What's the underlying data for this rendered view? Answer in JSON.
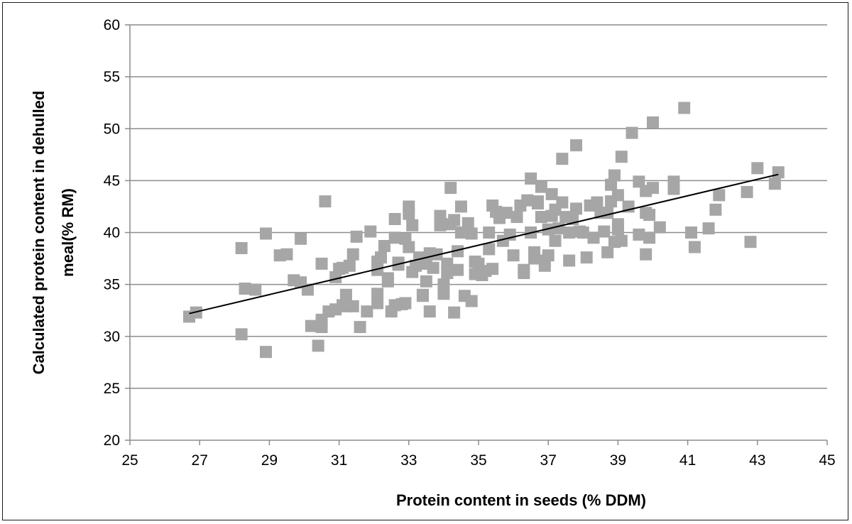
{
  "chart_data": {
    "type": "scatter",
    "title": "",
    "xlabel": "Protein content in seeds (% DDM)",
    "ylabel": "Calculated protein content in dehulled meal(% RM)",
    "xlim": [
      25,
      45
    ],
    "ylim": [
      20,
      60
    ],
    "xticks": [
      25,
      27,
      29,
      31,
      33,
      35,
      37,
      39,
      41,
      43,
      45
    ],
    "yticks": [
      20,
      25,
      30,
      35,
      40,
      45,
      50,
      55,
      60
    ],
    "grid": "horizontal",
    "legend": "none",
    "marker_color": "#a6a6a6",
    "trend_color": "#000000",
    "trendline": {
      "x": [
        26.7,
        43.6
      ],
      "y": [
        32.2,
        45.6
      ]
    },
    "points": [
      [
        26.7,
        31.9
      ],
      [
        26.9,
        32.3
      ],
      [
        28.2,
        38.5
      ],
      [
        28.3,
        34.6
      ],
      [
        28.6,
        34.5
      ],
      [
        28.2,
        30.2
      ],
      [
        28.9,
        28.5
      ],
      [
        28.9,
        39.9
      ],
      [
        29.3,
        37.8
      ],
      [
        29.5,
        37.9
      ],
      [
        29.7,
        35.4
      ],
      [
        29.9,
        39.4
      ],
      [
        29.9,
        35.2
      ],
      [
        30.1,
        34.5
      ],
      [
        30.2,
        31.0
      ],
      [
        30.4,
        29.1
      ],
      [
        30.5,
        30.9
      ],
      [
        30.5,
        31.6
      ],
      [
        30.5,
        37.0
      ],
      [
        30.6,
        43.0
      ],
      [
        30.7,
        32.4
      ],
      [
        30.9,
        32.6
      ],
      [
        30.9,
        35.7
      ],
      [
        31.0,
        36.5
      ],
      [
        31.1,
        36.6
      ],
      [
        31.1,
        33.0
      ],
      [
        31.2,
        34.0
      ],
      [
        31.2,
        32.9
      ],
      [
        31.3,
        36.8
      ],
      [
        31.4,
        37.9
      ],
      [
        31.4,
        32.9
      ],
      [
        31.5,
        39.6
      ],
      [
        31.6,
        30.9
      ],
      [
        31.8,
        32.4
      ],
      [
        31.9,
        40.1
      ],
      [
        32.1,
        37.2
      ],
      [
        32.1,
        36.4
      ],
      [
        32.1,
        34.1
      ],
      [
        32.1,
        33.2
      ],
      [
        32.2,
        37.6
      ],
      [
        32.3,
        38.7
      ],
      [
        32.4,
        35.3
      ],
      [
        32.4,
        35.6
      ],
      [
        32.5,
        32.4
      ],
      [
        32.6,
        33.0
      ],
      [
        32.6,
        39.5
      ],
      [
        32.6,
        41.3
      ],
      [
        32.7,
        37.1
      ],
      [
        32.7,
        36.9
      ],
      [
        32.8,
        33.1
      ],
      [
        32.9,
        33.2
      ],
      [
        32.9,
        39.4
      ],
      [
        33.0,
        38.6
      ],
      [
        33.0,
        42.5
      ],
      [
        33.0,
        41.8
      ],
      [
        33.1,
        40.7
      ],
      [
        33.1,
        36.2
      ],
      [
        33.2,
        36.8
      ],
      [
        33.3,
        37.6
      ],
      [
        33.4,
        34.0
      ],
      [
        33.4,
        33.9
      ],
      [
        33.5,
        37.0
      ],
      [
        33.5,
        35.3
      ],
      [
        33.6,
        38.0
      ],
      [
        33.6,
        32.4
      ],
      [
        33.7,
        36.6
      ],
      [
        33.8,
        37.9
      ],
      [
        33.9,
        41.6
      ],
      [
        33.9,
        40.7
      ],
      [
        34.0,
        35.0
      ],
      [
        34.0,
        34.1
      ],
      [
        34.1,
        37.0
      ],
      [
        34.1,
        36.1
      ],
      [
        34.2,
        44.3
      ],
      [
        34.2,
        40.8
      ],
      [
        34.3,
        41.2
      ],
      [
        34.3,
        32.3
      ],
      [
        34.4,
        36.4
      ],
      [
        34.4,
        38.2
      ],
      [
        34.5,
        40.0
      ],
      [
        34.5,
        42.5
      ],
      [
        34.6,
        33.9
      ],
      [
        34.7,
        40.9
      ],
      [
        34.8,
        39.9
      ],
      [
        34.8,
        33.4
      ],
      [
        34.9,
        37.2
      ],
      [
        34.9,
        36.0
      ],
      [
        35.0,
        37.0
      ],
      [
        35.1,
        35.9
      ],
      [
        35.2,
        36.3
      ],
      [
        35.3,
        38.4
      ],
      [
        35.3,
        40.0
      ],
      [
        35.4,
        36.5
      ],
      [
        35.4,
        42.6
      ],
      [
        35.5,
        42.0
      ],
      [
        35.6,
        41.4
      ],
      [
        35.7,
        39.2
      ],
      [
        35.8,
        41.9
      ],
      [
        35.9,
        39.8
      ],
      [
        36.0,
        37.8
      ],
      [
        36.1,
        41.5
      ],
      [
        36.2,
        42.6
      ],
      [
        36.3,
        36.4
      ],
      [
        36.3,
        36.1
      ],
      [
        36.4,
        43.1
      ],
      [
        36.5,
        45.2
      ],
      [
        36.5,
        40.0
      ],
      [
        36.6,
        38.1
      ],
      [
        36.6,
        37.5
      ],
      [
        36.7,
        42.8
      ],
      [
        36.7,
        43.0
      ],
      [
        36.8,
        41.5
      ],
      [
        36.8,
        44.4
      ],
      [
        36.9,
        36.8
      ],
      [
        36.9,
        37.3
      ],
      [
        37.0,
        37.8
      ],
      [
        37.0,
        40.3
      ],
      [
        37.1,
        43.7
      ],
      [
        37.1,
        41.6
      ],
      [
        37.2,
        42.2
      ],
      [
        37.2,
        39.2
      ],
      [
        37.3,
        40.4
      ],
      [
        37.4,
        42.9
      ],
      [
        37.4,
        47.1
      ],
      [
        37.5,
        41.5
      ],
      [
        37.6,
        40.0
      ],
      [
        37.6,
        37.3
      ],
      [
        37.7,
        41.3
      ],
      [
        37.8,
        48.4
      ],
      [
        37.8,
        42.3
      ],
      [
        37.9,
        40.1
      ],
      [
        38.0,
        40.0
      ],
      [
        38.1,
        37.6
      ],
      [
        38.2,
        42.6
      ],
      [
        38.3,
        39.5
      ],
      [
        38.4,
        42.9
      ],
      [
        38.5,
        41.9
      ],
      [
        38.6,
        40.1
      ],
      [
        38.7,
        38.1
      ],
      [
        38.7,
        41.9
      ],
      [
        38.8,
        44.6
      ],
      [
        38.8,
        43.0
      ],
      [
        38.9,
        45.5
      ],
      [
        38.9,
        39.1
      ],
      [
        39.0,
        43.6
      ],
      [
        39.0,
        40.8
      ],
      [
        39.0,
        40.3
      ],
      [
        39.1,
        47.3
      ],
      [
        39.1,
        39.2
      ],
      [
        39.3,
        42.5
      ],
      [
        39.4,
        49.6
      ],
      [
        39.6,
        44.9
      ],
      [
        39.6,
        39.8
      ],
      [
        39.8,
        44.0
      ],
      [
        39.8,
        41.9
      ],
      [
        39.8,
        37.9
      ],
      [
        39.9,
        39.5
      ],
      [
        39.9,
        41.7
      ],
      [
        40.0,
        50.6
      ],
      [
        40.0,
        44.3
      ],
      [
        40.2,
        40.5
      ],
      [
        40.6,
        44.9
      ],
      [
        40.6,
        44.2
      ],
      [
        40.9,
        52.0
      ],
      [
        41.1,
        40.0
      ],
      [
        41.2,
        38.6
      ],
      [
        41.6,
        40.4
      ],
      [
        41.8,
        42.2
      ],
      [
        41.9,
        43.6
      ],
      [
        42.7,
        43.9
      ],
      [
        42.8,
        39.1
      ],
      [
        43.0,
        46.2
      ],
      [
        43.5,
        44.7
      ],
      [
        43.6,
        45.8
      ]
    ]
  }
}
